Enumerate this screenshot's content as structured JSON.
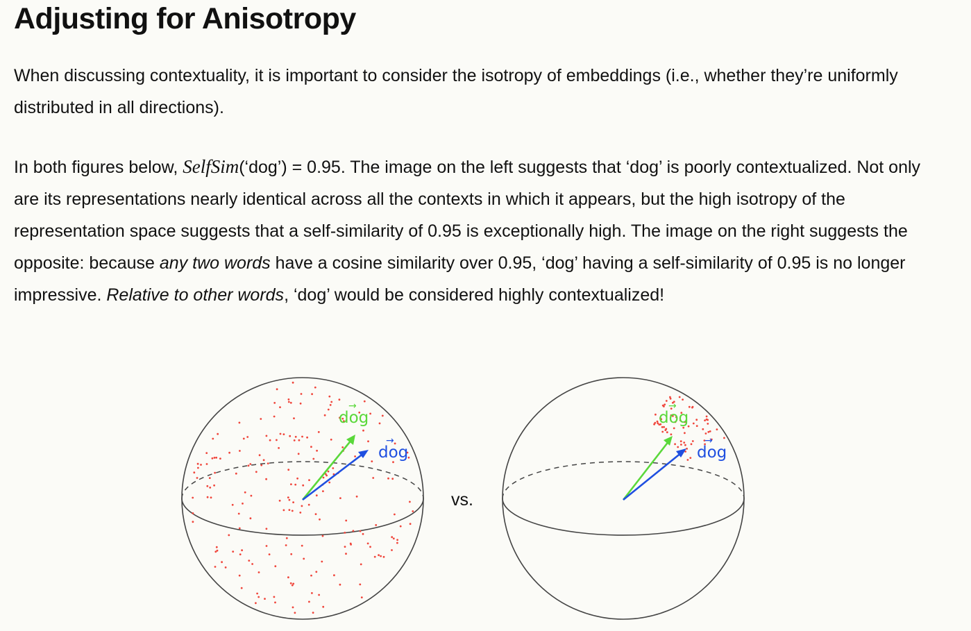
{
  "heading": "Adjusting for Anisotropy",
  "paragraph1": "When discussing contextuality, it is important to consider the isotropy of embeddings (i.e., whether they’re uniformly distributed in all directions).",
  "paragraph2": {
    "intro": "In both figures below, ",
    "math_term": "SelfSim",
    "after_math": "(‘dog’) = 0.95. The image on the left suggests that ‘dog’ is poorly contextualized. Not only are its representations nearly identical across all the contexts in which it appears, but the high isotropy of the representation space suggests that a self-similarity of 0.95 is exceptionally high. The image on the right suggests the opposite: because ",
    "emphasis1": "any two words",
    "middle": " have a cosine similarity over 0.95, ‘dog’ having a self-similarity of 0.95 is no longer impressive. ",
    "emphasis2": "Relative to other words",
    "ending": ", ‘dog’ would be considered highly contextualized!"
  },
  "figure": {
    "vs_label": "vs.",
    "left_vector_labels": [
      "dog",
      "dog"
    ],
    "right_vector_labels": [
      "dog",
      "dog"
    ],
    "colors": {
      "green_vector": "#5ad83a",
      "blue_vector": "#1f4fe0",
      "points": "#f0463c",
      "outline": "#444444"
    }
  }
}
